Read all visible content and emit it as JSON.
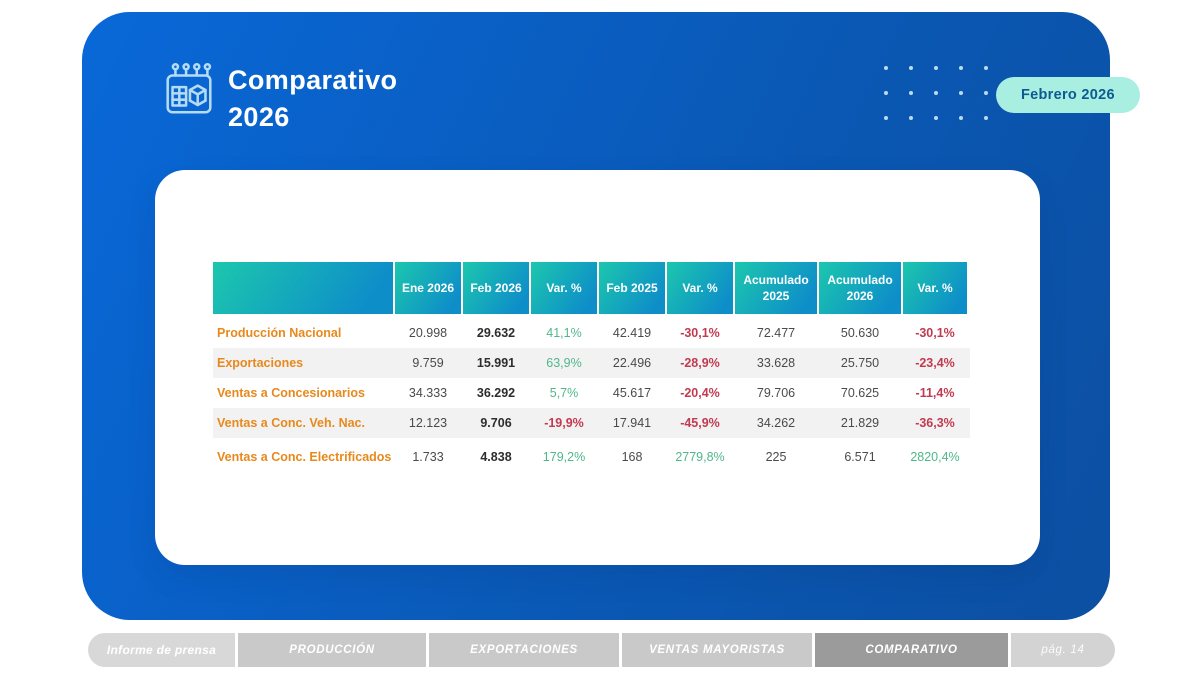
{
  "header": {
    "title_line1": "Comparativo",
    "title_line2": "2026",
    "badge_label": "Febrero 2026",
    "icon": "calendar-box-icon"
  },
  "table": {
    "columns": [
      "",
      "Ene 2026",
      "Feb 2026",
      "Var. %",
      "Feb 2025",
      "Var. %",
      "Acumulado 2025",
      "Acumulado 2026",
      "Var. %"
    ],
    "rows": [
      {
        "label": "Producción Nacional",
        "values": [
          "20.998",
          "29.632",
          "41,1%",
          "42.419",
          "-30,1%",
          "72.477",
          "50.630",
          "-30,1%"
        ]
      },
      {
        "label": "Exportaciones",
        "values": [
          "9.759",
          "15.991",
          "63,9%",
          "22.496",
          "-28,9%",
          "33.628",
          "25.750",
          "-23,4%"
        ]
      },
      {
        "label": "Ventas a Concesionarios",
        "values": [
          "34.333",
          "36.292",
          "5,7%",
          "45.617",
          "-20,4%",
          "79.706",
          "70.625",
          "-11,4%"
        ]
      },
      {
        "label": "Ventas a Conc. Veh. Nac.",
        "values": [
          "12.123",
          "9.706",
          "-19,9%",
          "17.941",
          "-45,9%",
          "34.262",
          "21.829",
          "-36,3%"
        ]
      },
      {
        "label": "Ventas a Conc. Electrificados",
        "values": [
          "1.733",
          "4.838",
          "179,2%",
          "168",
          "2779,8%",
          "225",
          "6.571",
          "2820,4%"
        ]
      }
    ]
  },
  "footer": {
    "tabs": [
      {
        "label": "Informe de prensa",
        "active": false
      },
      {
        "label": "PRODUCCIÓN",
        "active": false
      },
      {
        "label": "EXPORTACIONES",
        "active": false
      },
      {
        "label": "VENTAS MAYORISTAS",
        "active": false
      },
      {
        "label": "COMPARATIVO",
        "active": true
      }
    ],
    "page_label": "pág. 14"
  },
  "colors": {
    "panel_blue_start": "#0968d8",
    "panel_blue_end": "#0c4fa2",
    "table_header_gradient_start": "#1cc7ad",
    "table_header_gradient_end": "#0e8ec9",
    "badge_bg": "#a8efe2",
    "badge_text": "#0d5a91",
    "row_label_orange": "#e8891c",
    "positive_green": "#4fb78a",
    "negative_red": "#c23a50"
  }
}
